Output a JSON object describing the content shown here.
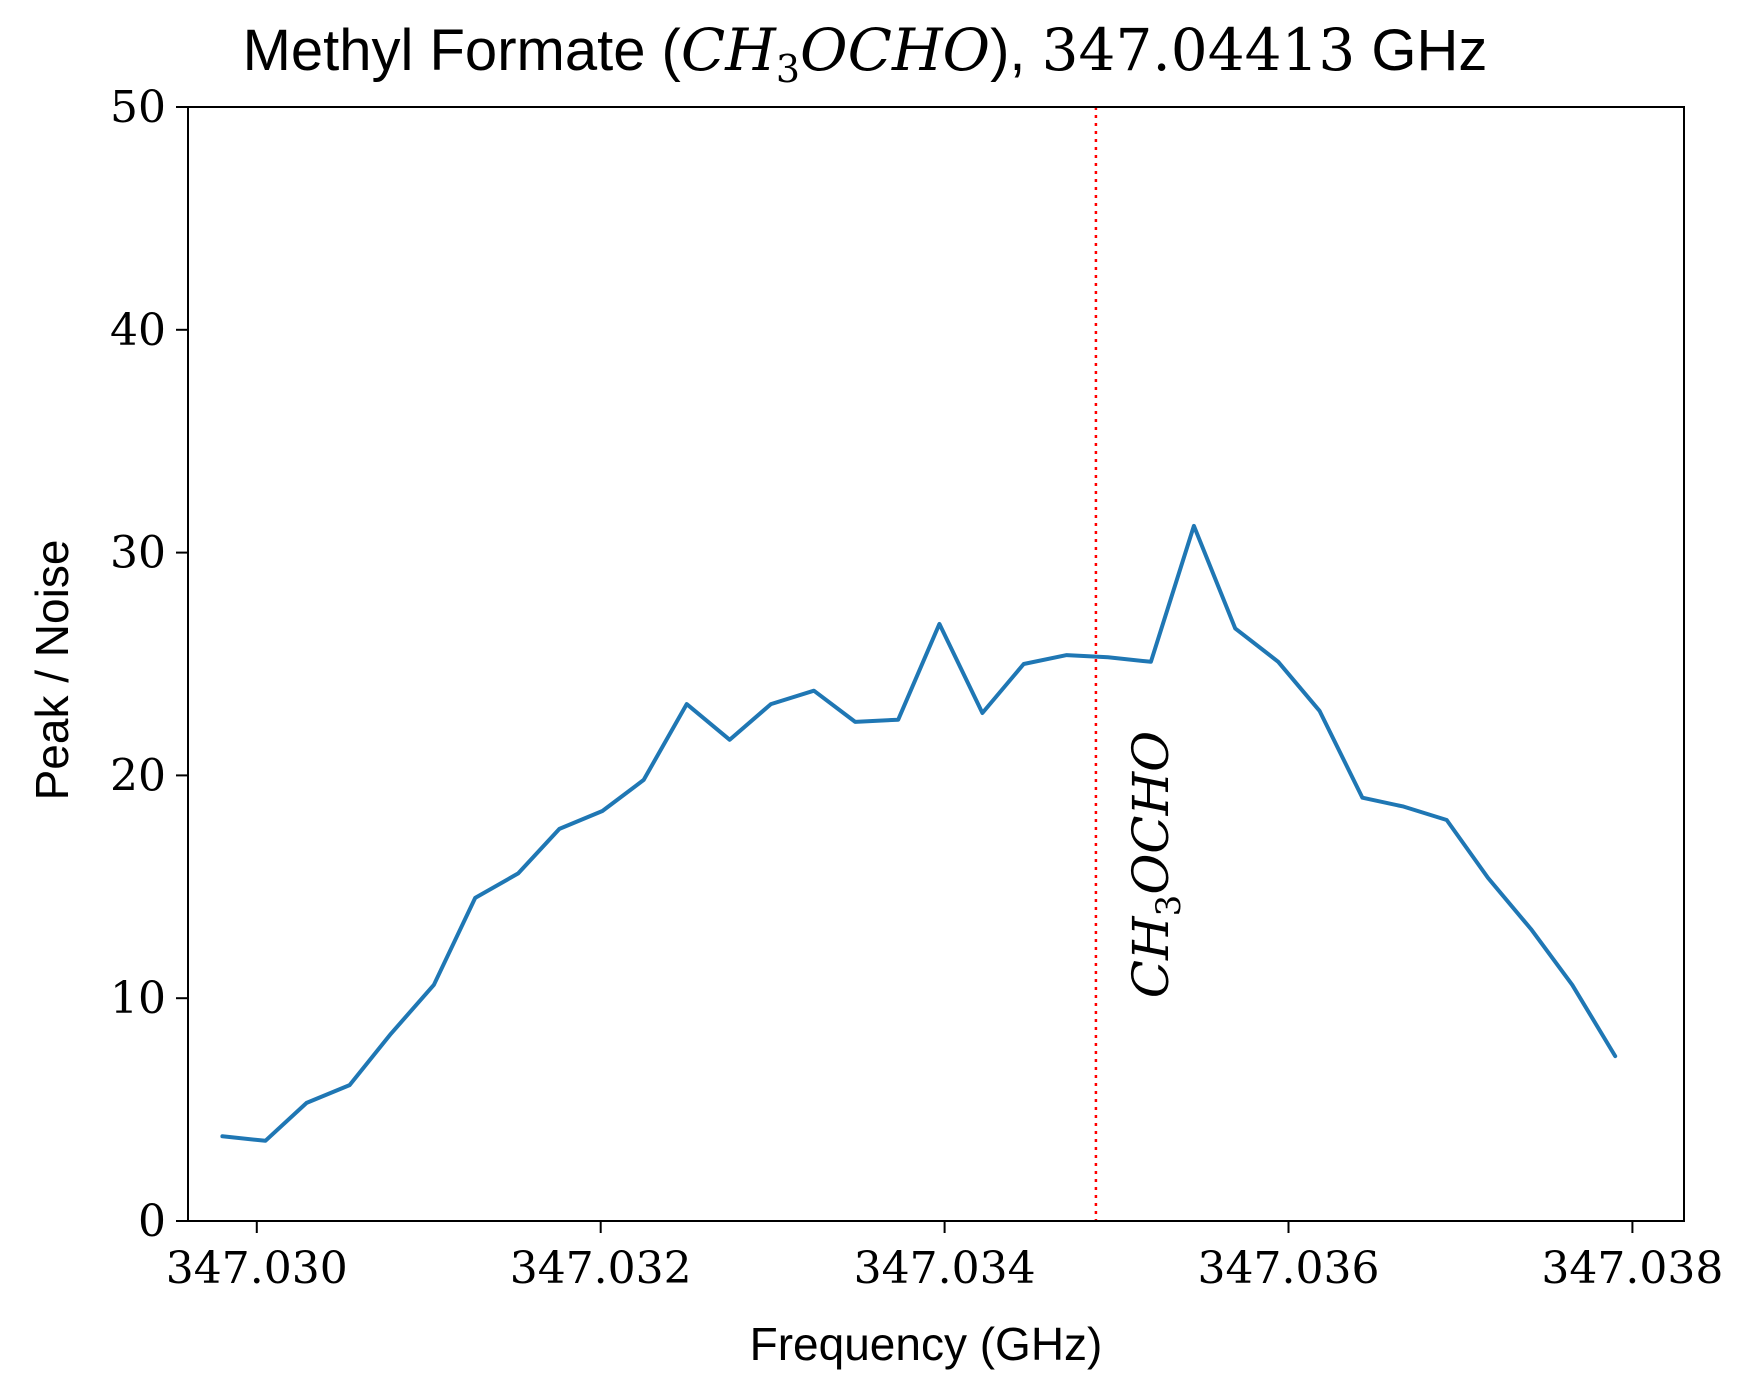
{
  "chart_data": {
    "type": "line",
    "title": {
      "prefix": "Methyl Formate (",
      "molecule_main": "CH",
      "molecule_sub": "3",
      "molecule_rest": "OCHO",
      "middle": "), ",
      "freq": "347.04413",
      "suffix": " GHz"
    },
    "xlabel": "Frequency (GHz)",
    "ylabel": "Peak / Noise",
    "xlim": [
      347.0296,
      347.0383
    ],
    "ylim": [
      0,
      50
    ],
    "x_ticks": [
      347.03,
      347.032,
      347.034,
      347.036,
      347.038
    ],
    "x_tick_labels": [
      "347.030",
      "347.032",
      "347.034",
      "347.036",
      "347.038"
    ],
    "y_ticks": [
      0,
      10,
      20,
      30,
      40,
      50
    ],
    "y_tick_labels": [
      "0",
      "10",
      "20",
      "30",
      "40",
      "50"
    ],
    "grid": false,
    "series": [
      {
        "color": "#1f77b4",
        "x": [
          347.0298,
          347.03005,
          347.03029,
          347.03054,
          347.03078,
          347.03103,
          347.03127,
          347.03152,
          347.03176,
          347.03201,
          347.03225,
          347.0325,
          347.03275,
          347.03299,
          347.03324,
          347.03348,
          347.03373,
          347.03397,
          347.03422,
          347.03446,
          347.03471,
          347.03495,
          347.0352,
          347.03545,
          347.03569,
          347.03594,
          347.03618,
          347.03643,
          347.03667,
          347.03692,
          347.03716,
          347.03741,
          347.03765,
          347.0379
        ],
        "y": [
          3.8,
          3.6,
          5.3,
          6.1,
          8.4,
          10.6,
          14.5,
          15.6,
          17.6,
          18.4,
          19.8,
          23.2,
          21.6,
          23.2,
          23.8,
          22.4,
          22.5,
          26.8,
          22.8,
          25.0,
          25.4,
          25.3,
          25.1,
          31.2,
          26.6,
          25.1,
          22.9,
          19.0,
          18.6,
          18.0,
          15.4,
          13.1,
          10.6,
          7.4
        ]
      }
    ],
    "marker_line": {
      "x": 347.03488,
      "color": "#ff0000",
      "style": "dotted",
      "label_main": "CH",
      "label_sub": "3",
      "label_rest": "OCHO",
      "label_y": 10
    }
  }
}
